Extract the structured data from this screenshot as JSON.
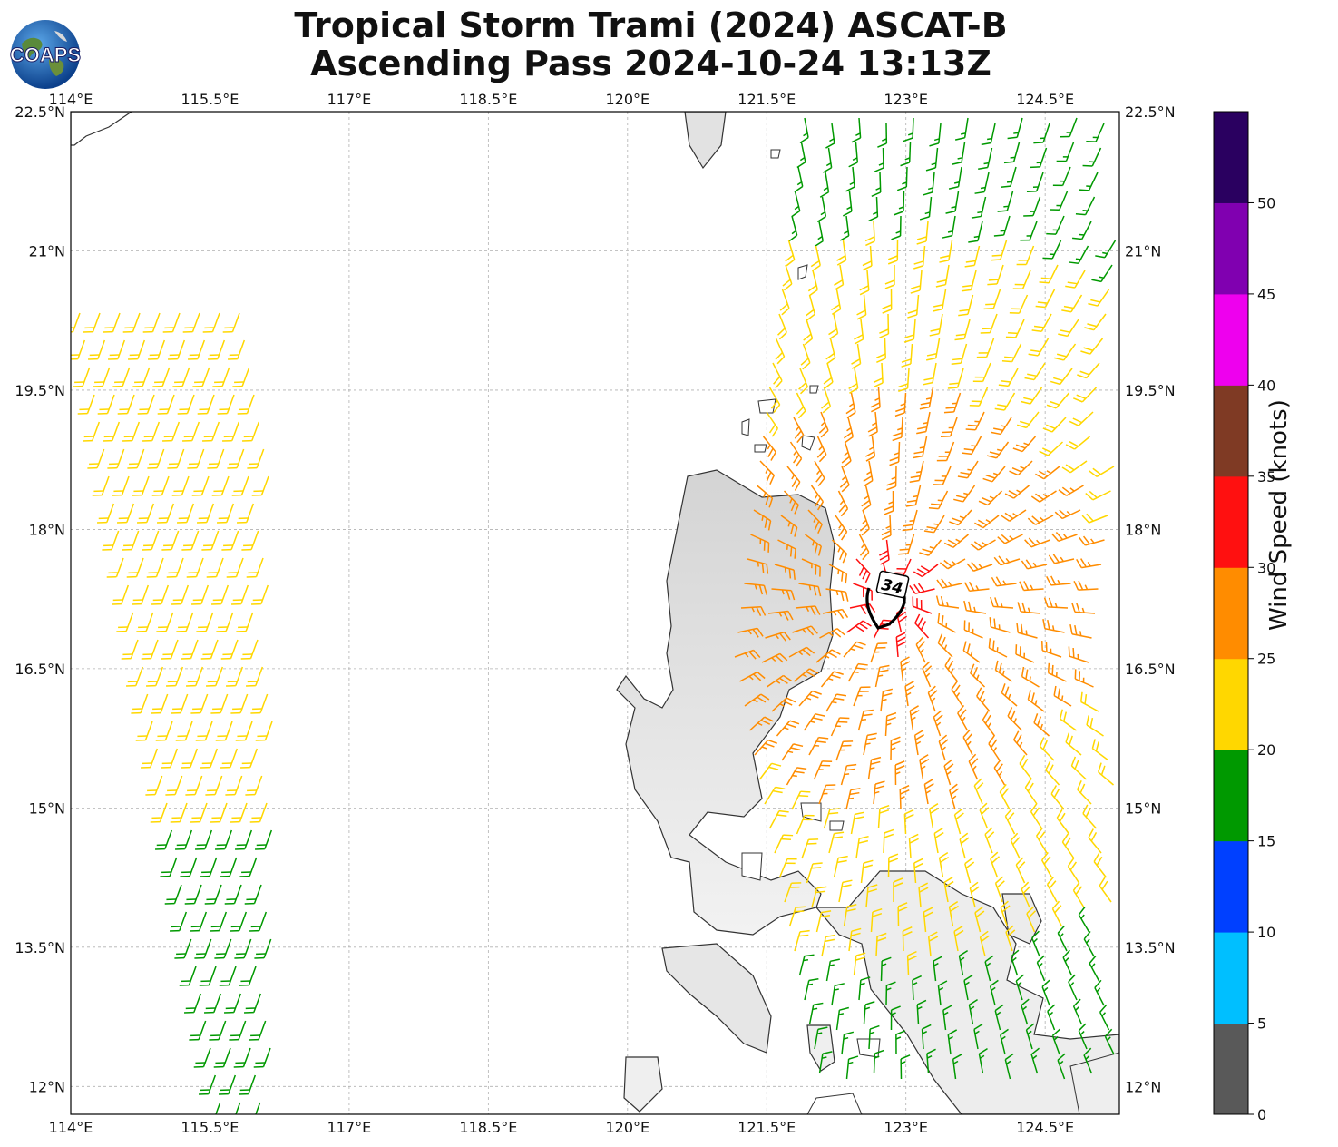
{
  "title": {
    "line1": "Tropical Storm Trami (2024) ASCAT-B",
    "line2": "Ascending Pass 2024-10-24 13:13Z"
  },
  "logo": {
    "text": "COAPS",
    "icon": "globe-logo-icon"
  },
  "map": {
    "lon_range": [
      114.0,
      125.3
    ],
    "lat_range": [
      11.7,
      22.5
    ],
    "lon_ticks": [
      "114°E",
      "115.5°E",
      "117°E",
      "118.5°E",
      "120°E",
      "121.5°E",
      "123°E",
      "124.5°E"
    ],
    "lat_ticks": [
      "22.5°N",
      "21°N",
      "19.5°N",
      "18°N",
      "16.5°N",
      "15°N",
      "13.5°N",
      "12°N"
    ],
    "contour_label": "34",
    "gridlines": true
  },
  "colorbar": {
    "label": "Wind Speed (knots)",
    "ticks": [
      "0",
      "5",
      "10",
      "15",
      "20",
      "25",
      "30",
      "35",
      "40",
      "45",
      "50"
    ],
    "colors": [
      "#595959",
      "#00bfff",
      "#0040ff",
      "#009900",
      "#ffd700",
      "#ff8c00",
      "#ff1010",
      "#7f3a24",
      "#ee00ee",
      "#8000b0",
      "#2a0060"
    ]
  }
}
